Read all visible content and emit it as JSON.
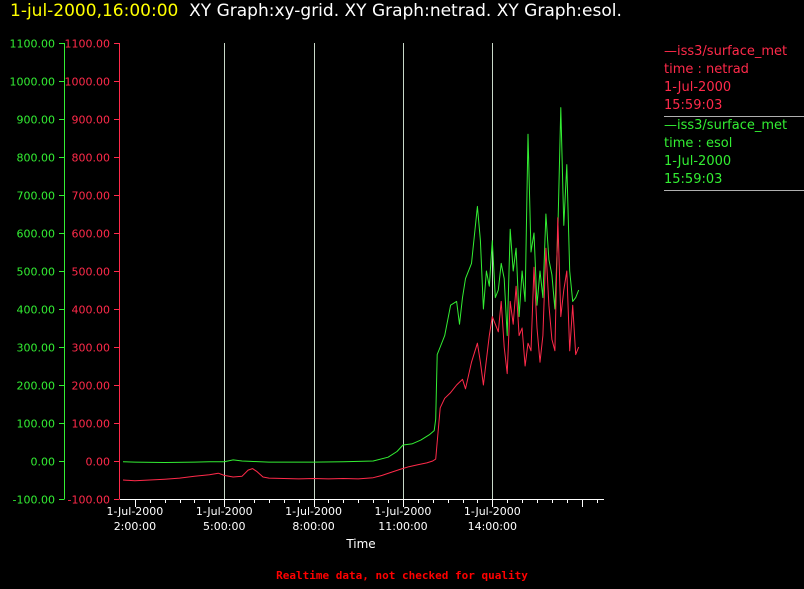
{
  "header": {
    "timestamp": "1-jul-2000,16:00:00",
    "graphs": "XY Graph:xy-grid.  XY Graph:netrad.  XY Graph:esol."
  },
  "colors": {
    "background": "#000000",
    "axis": "#ffffff",
    "netrad": "#ff2a4a",
    "esol": "#33ee33",
    "timestamp": "#ffff00",
    "disclaimer": "#ff0000"
  },
  "legend": [
    {
      "source": "—iss3/surface_met",
      "variable": "time : netrad",
      "date": "1-Jul-2000",
      "time": "15:59:03",
      "color": "#ff2a4a"
    },
    {
      "source": "—iss3/surface_met",
      "variable": "time : esol",
      "date": "1-Jul-2000",
      "time": "15:59:03",
      "color": "#33ee33"
    }
  ],
  "footer": {
    "disclaimer": "Realtime data, not checked for quality"
  },
  "chart_data": {
    "type": "line",
    "title": "",
    "xlabel": "Time",
    "ylabel": "",
    "xlim": [
      1.5,
      17.75
    ],
    "ylim": [
      -100,
      1100
    ],
    "y_ticks": [
      -100,
      0,
      100,
      200,
      300,
      400,
      500,
      600,
      700,
      800,
      900,
      1000,
      1100
    ],
    "y_tick_labels": [
      "-100.00",
      "0.00",
      "100.00",
      "200.00",
      "300.00",
      "400.00",
      "500.00",
      "600.00",
      "700.00",
      "800.00",
      "900.00",
      "1000.00",
      "1100.00"
    ],
    "x_ticks": [
      {
        "hour": 2,
        "date": "1-Jul-2000",
        "time": "2:00:00"
      },
      {
        "hour": 5,
        "date": "1-Jul-2000",
        "time": "5:00:00"
      },
      {
        "hour": 8,
        "date": "1-Jul-2000",
        "time": "8:00:00"
      },
      {
        "hour": 11,
        "date": "1-Jul-2000",
        "time": "11:00:00"
      },
      {
        "hour": 14,
        "date": "1-Jul-2000",
        "time": "14:00:00"
      }
    ],
    "grid": "vertical lines at x ticks",
    "series": [
      {
        "name": "netrad",
        "color": "#ff2a4a",
        "x": [
          1.6,
          2.0,
          2.5,
          3.0,
          3.5,
          4.0,
          4.5,
          4.8,
          5.0,
          5.3,
          5.6,
          5.8,
          5.95,
          6.1,
          6.3,
          6.5,
          7.0,
          7.5,
          8.0,
          8.5,
          9.0,
          9.5,
          10.0,
          10.3,
          10.6,
          10.9,
          11.2,
          11.5,
          11.8,
          12.0,
          12.1,
          12.15,
          12.25,
          12.4,
          12.6,
          12.8,
          13.0,
          13.1,
          13.3,
          13.5,
          13.6,
          13.7,
          13.9,
          14.0,
          14.2,
          14.3,
          14.4,
          14.5,
          14.6,
          14.7,
          14.8,
          14.9,
          15.0,
          15.1,
          15.2,
          15.3,
          15.4,
          15.5,
          15.6,
          15.7,
          15.8,
          15.9,
          16.0,
          16.1,
          16.2,
          16.3,
          16.4,
          16.5,
          16.6,
          16.7,
          16.8,
          16.9
        ],
        "values": [
          -50,
          -52,
          -50,
          -48,
          -45,
          -40,
          -36,
          -32,
          -38,
          -42,
          -40,
          -24,
          -20,
          -28,
          -42,
          -45,
          -46,
          -47,
          -46,
          -47,
          -46,
          -47,
          -44,
          -38,
          -30,
          -22,
          -15,
          -10,
          -5,
          0,
          5,
          50,
          140,
          165,
          180,
          200,
          215,
          190,
          260,
          310,
          260,
          200,
          330,
          380,
          340,
          420,
          300,
          230,
          420,
          360,
          460,
          330,
          350,
          250,
          310,
          290,
          510,
          350,
          260,
          330,
          560,
          410,
          320,
          290,
          640,
          380,
          450,
          500,
          290,
          410,
          280,
          300
        ]
      },
      {
        "name": "esol",
        "color": "#33ee33",
        "x": [
          1.6,
          2.0,
          3.0,
          4.0,
          4.5,
          5.0,
          5.3,
          5.6,
          5.9,
          6.2,
          6.5,
          7.0,
          8.0,
          9.0,
          10.0,
          10.5,
          10.8,
          11.0,
          11.3,
          11.6,
          11.9,
          12.05,
          12.1,
          12.15,
          12.25,
          12.4,
          12.6,
          12.8,
          12.9,
          13.0,
          13.1,
          13.3,
          13.5,
          13.6,
          13.7,
          13.8,
          13.9,
          14.0,
          14.1,
          14.2,
          14.3,
          14.4,
          14.5,
          14.6,
          14.7,
          14.8,
          14.9,
          15.0,
          15.1,
          15.2,
          15.3,
          15.4,
          15.5,
          15.6,
          15.7,
          15.8,
          15.9,
          16.0,
          16.1,
          16.2,
          16.3,
          16.4,
          16.5,
          16.6,
          16.7,
          16.8,
          16.9
        ],
        "values": [
          -2,
          -3,
          -4,
          -3,
          -2,
          -2,
          3,
          0,
          -1,
          -2,
          -3,
          -3,
          -3,
          -2,
          0,
          10,
          25,
          42,
          45,
          55,
          70,
          80,
          110,
          280,
          300,
          330,
          410,
          420,
          360,
          430,
          480,
          520,
          670,
          580,
          400,
          500,
          460,
          580,
          430,
          450,
          520,
          480,
          330,
          610,
          500,
          560,
          380,
          500,
          420,
          860,
          550,
          600,
          410,
          500,
          430,
          650,
          530,
          490,
          400,
          600,
          930,
          620,
          780,
          500,
          420,
          430,
          450
        ]
      }
    ]
  }
}
